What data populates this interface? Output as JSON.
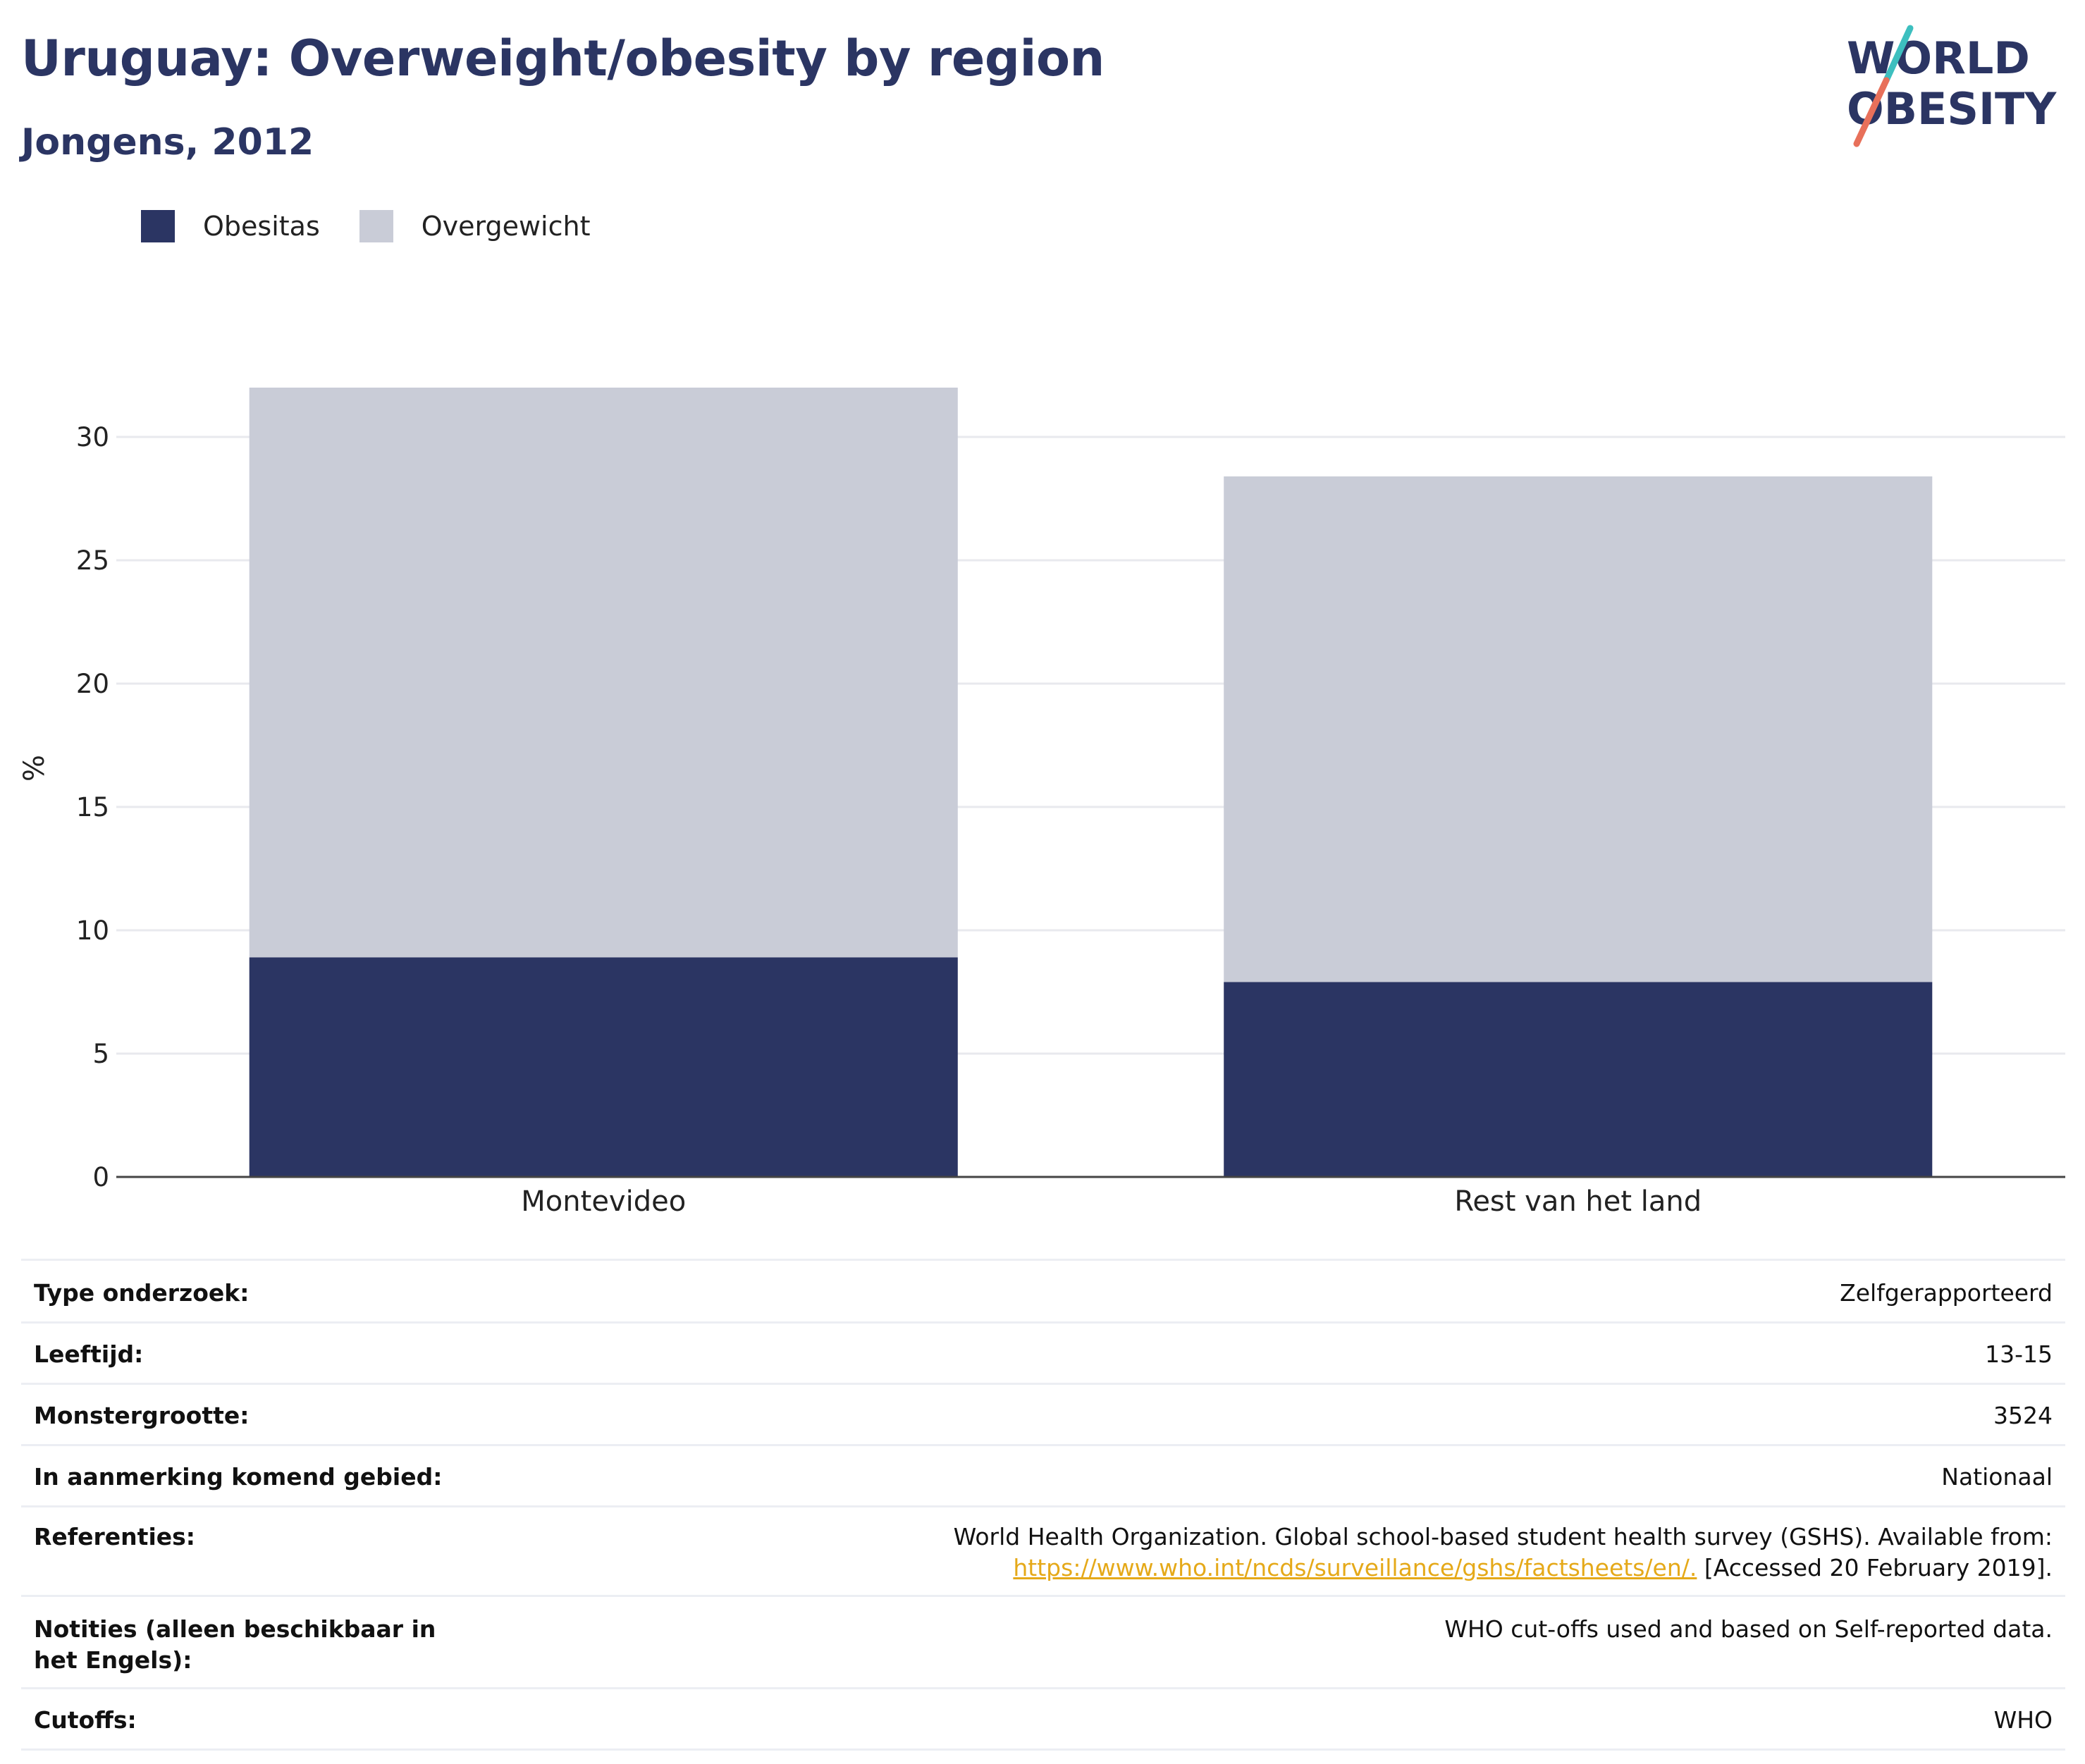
{
  "title": "Uruguay: Overweight/obesity by region",
  "subtitle": "Jongens, 2012",
  "logo": {
    "line1": "WORLD",
    "line2": "OBESITY"
  },
  "colors": {
    "obesity": "#2b3563",
    "overweight": "#c9ccd7",
    "title": "#2b3563",
    "link": "#e5a919"
  },
  "legend": [
    {
      "label": "Obesitas",
      "color": "#2b3563"
    },
    {
      "label": "Overgewicht",
      "color": "#c9ccd7"
    }
  ],
  "chart_data": {
    "type": "bar",
    "stacked": true,
    "categories": [
      "Montevideo",
      "Rest van het land"
    ],
    "series": [
      {
        "name": "Obesitas",
        "values": [
          8.9,
          7.9
        ]
      },
      {
        "name": "Overgewicht",
        "values": [
          23.1,
          20.5
        ]
      }
    ],
    "totals": [
      32.0,
      28.4
    ],
    "ylabel": "%",
    "yticks": [
      0,
      5,
      10,
      15,
      20,
      25,
      30
    ],
    "ylim": [
      0,
      32
    ],
    "grid": true,
    "legend_position": "top-left"
  },
  "meta": [
    {
      "label": "Type onderzoek:",
      "value": "Zelfgerapporteerd"
    },
    {
      "label": "Leeftijd:",
      "value": "13-15"
    },
    {
      "label": "Monstergrootte:",
      "value": "3524"
    },
    {
      "label": "In aanmerking komend gebied:",
      "value": "Nationaal"
    },
    {
      "label": "Referenties:",
      "value": "World Health Organization. Global school-based student health survey (GSHS). Available from:",
      "link": "https://www.who.int/ncds/surveillance/gshs/factsheets/en/.",
      "value_after": " [Accessed 20 February 2019]."
    },
    {
      "label": "Notities (alleen beschikbaar in het Engels):",
      "value": "WHO cut-offs used and based on Self-reported data."
    },
    {
      "label": "Cutoffs:",
      "value": "WHO"
    }
  ]
}
